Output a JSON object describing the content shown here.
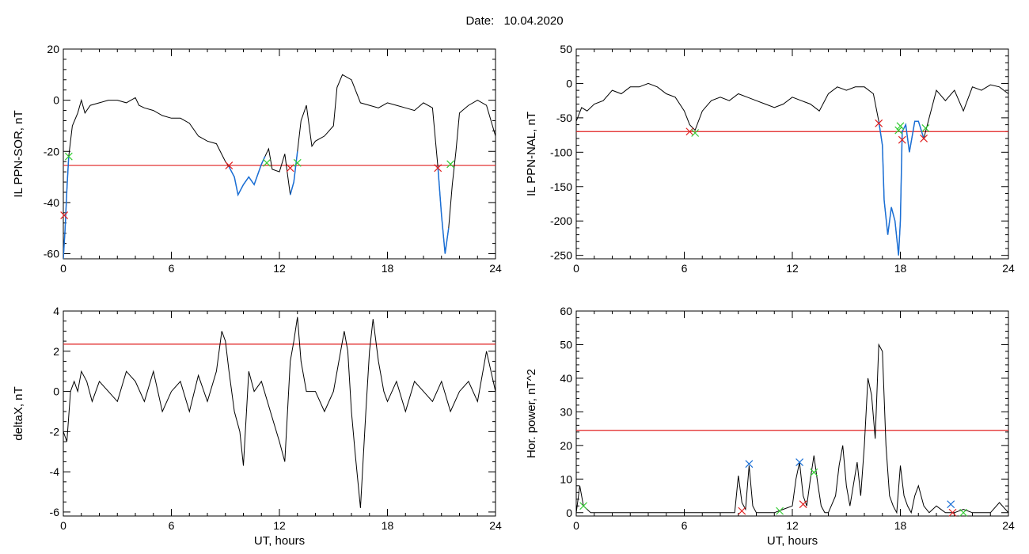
{
  "header": {
    "date_label": "Date:",
    "date_value": "10.04.2020"
  },
  "chart_data": [
    {
      "type": "line",
      "ylabel": "IL PPN-SOR, nT",
      "xlabel": "UT, hours",
      "xlim": [
        0,
        24
      ],
      "ylim": [
        -62,
        20
      ],
      "xticks": [
        0,
        6,
        12,
        18,
        24
      ],
      "yticks": [
        -60,
        -40,
        -20,
        0,
        20
      ],
      "threshold": -25.5,
      "colors": {
        "line": "#000000",
        "highlight": "#1a6fd6",
        "threshold": "#e02020",
        "start_marker": "#e02020",
        "end_marker": "#33cc33"
      },
      "series": [
        {
          "x": [
            0,
            0.1,
            0.2,
            0.3,
            0.5,
            0.8,
            1.0,
            1.2,
            1.5,
            2,
            2.5,
            3,
            3.5,
            4,
            4.2,
            4.5,
            5,
            5.5,
            6,
            6.5,
            7,
            7.5,
            8,
            8.5,
            9,
            9.2,
            9.5,
            9.7,
            10,
            10.3,
            10.6,
            11,
            11.2,
            11.4,
            11.6,
            12,
            12.3,
            12.6,
            12.8,
            13,
            13.2,
            13.5,
            13.8,
            14,
            14.5,
            15,
            15.2,
            15.5,
            16,
            16.5,
            17,
            17.5,
            18,
            18.5,
            19,
            19.5,
            20,
            20.5,
            20.8,
            21,
            21.2,
            21.4,
            21.6,
            21.8,
            22,
            22.5,
            23,
            23.5,
            24
          ],
          "y": [
            -62,
            -50,
            -35,
            -22,
            -10,
            -5,
            0,
            -5,
            -2,
            -1,
            0,
            0,
            -1,
            1,
            -2,
            -3,
            -4,
            -6,
            -7,
            -7,
            -9,
            -14,
            -16,
            -17,
            -24,
            -26,
            -30,
            -37,
            -33,
            -30,
            -33,
            -25,
            -22,
            -19,
            -27,
            -28,
            -21,
            -37,
            -32,
            -20,
            -8,
            -2,
            -18,
            -16,
            -14,
            -10,
            5,
            10,
            8,
            -1,
            -2,
            -3,
            -1,
            -2,
            -3,
            -4,
            -1,
            -3,
            -26,
            -45,
            -60,
            -50,
            -33,
            -20,
            -5,
            -2,
            0,
            -2,
            -14
          ]
        }
      ],
      "segments": [
        [
          0,
          0.3
        ],
        [
          9.2,
          11.3
        ],
        [
          12.6,
          13.0
        ],
        [
          20.8,
          21.5
        ]
      ],
      "markers": [
        {
          "x": 0.05,
          "y": -45,
          "kind": "start"
        },
        {
          "x": 0.3,
          "y": -22,
          "kind": "end"
        },
        {
          "x": 9.2,
          "y": -25.5,
          "kind": "start"
        },
        {
          "x": 11.3,
          "y": -24.5,
          "kind": "end"
        },
        {
          "x": 12.6,
          "y": -26.5,
          "kind": "start"
        },
        {
          "x": 13.0,
          "y": -24.5,
          "kind": "end"
        },
        {
          "x": 20.8,
          "y": -26.5,
          "kind": "start"
        },
        {
          "x": 21.5,
          "y": -25,
          "kind": "end"
        }
      ]
    },
    {
      "type": "line",
      "ylabel": "IL PPN-NAL, nT",
      "xlabel": "UT, hours",
      "xlim": [
        0,
        24
      ],
      "ylim": [
        -255,
        50
      ],
      "xticks": [
        0,
        6,
        12,
        18,
        24
      ],
      "yticks": [
        -250,
        -200,
        -150,
        -100,
        -50,
        0,
        50
      ],
      "threshold": -70,
      "colors": {
        "line": "#000000",
        "highlight": "#1a6fd6",
        "threshold": "#e02020",
        "start_marker": "#e02020",
        "end_marker": "#33cc33"
      },
      "series": [
        {
          "x": [
            0,
            0.3,
            0.6,
            1,
            1.5,
            2,
            2.5,
            3,
            3.5,
            4,
            4.5,
            5,
            5.5,
            6,
            6.3,
            6.6,
            7,
            7.5,
            8,
            8.5,
            9,
            9.5,
            10,
            10.5,
            11,
            11.5,
            12,
            12.5,
            13,
            13.5,
            14,
            14.5,
            15,
            15.5,
            16,
            16.5,
            16.8,
            17,
            17.1,
            17.3,
            17.5,
            17.7,
            17.9,
            18.0,
            18.1,
            18.3,
            18.5,
            18.8,
            19.0,
            19.3,
            19.5,
            20,
            20.5,
            21,
            21.5,
            22,
            22.5,
            23,
            23.5,
            24
          ],
          "y": [
            -55,
            -35,
            -40,
            -30,
            -25,
            -10,
            -15,
            -5,
            -5,
            0,
            -5,
            -15,
            -20,
            -40,
            -60,
            -68,
            -40,
            -25,
            -20,
            -25,
            -15,
            -20,
            -25,
            -30,
            -35,
            -30,
            -20,
            -25,
            -30,
            -40,
            -15,
            -5,
            -10,
            -5,
            -5,
            -15,
            -55,
            -90,
            -170,
            -220,
            -180,
            -200,
            -250,
            -200,
            -70,
            -60,
            -100,
            -55,
            -55,
            -80,
            -60,
            -10,
            -25,
            -10,
            -40,
            -5,
            -10,
            -2,
            -5,
            -15
          ]
        }
      ],
      "segments": [
        [
          16.8,
          19.3
        ]
      ],
      "markers": [
        {
          "x": 6.3,
          "y": -70,
          "kind": "start"
        },
        {
          "x": 6.6,
          "y": -72,
          "kind": "end"
        },
        {
          "x": 16.8,
          "y": -58,
          "kind": "start"
        },
        {
          "x": 17.9,
          "y": -68,
          "kind": "end"
        },
        {
          "x": 18.0,
          "y": -62,
          "kind": "end"
        },
        {
          "x": 18.1,
          "y": -82,
          "kind": "start"
        },
        {
          "x": 19.3,
          "y": -80,
          "kind": "start"
        },
        {
          "x": 19.4,
          "y": -65,
          "kind": "end"
        }
      ]
    },
    {
      "type": "line",
      "ylabel": "deltaX, nT",
      "xlabel": "UT, hours",
      "xlim": [
        0,
        24
      ],
      "ylim": [
        -6.2,
        4
      ],
      "xticks": [
        0,
        6,
        12,
        18,
        24
      ],
      "yticks": [
        -6,
        -4,
        -2,
        0,
        2,
        4
      ],
      "threshold": 2.35,
      "colors": {
        "line": "#000000",
        "threshold": "#e02020"
      },
      "series": [
        {
          "x": [
            0,
            0.2,
            0.4,
            0.6,
            0.8,
            1,
            1.3,
            1.6,
            2,
            2.5,
            3,
            3.5,
            4,
            4.5,
            5,
            5.5,
            6,
            6.5,
            7,
            7.5,
            8,
            8.5,
            8.8,
            9.0,
            9.2,
            9.5,
            9.8,
            10,
            10.3,
            10.6,
            11,
            11.5,
            12,
            12.3,
            12.6,
            12.8,
            13,
            13.2,
            13.5,
            14,
            14.5,
            15,
            15.3,
            15.6,
            15.8,
            16,
            16.2,
            16.5,
            16.8,
            17,
            17.2,
            17.5,
            17.8,
            18,
            18.5,
            19,
            19.5,
            20,
            20.5,
            21,
            21.5,
            22,
            22.5,
            23,
            23.5,
            24
          ],
          "y": [
            -2,
            -2.5,
            0,
            0.5,
            0,
            1,
            0.5,
            -0.5,
            0.5,
            0,
            -0.5,
            1,
            0.5,
            -0.5,
            1,
            -1,
            0,
            0.5,
            -1,
            0.8,
            -0.5,
            1,
            3,
            2.5,
            1,
            -1,
            -2,
            -3.7,
            1,
            0,
            0.5,
            -1,
            -2.5,
            -3.5,
            1.5,
            2.5,
            3.7,
            1.5,
            0,
            0,
            -1,
            0,
            1.5,
            3.0,
            2.0,
            -1,
            -3,
            -5.8,
            -1,
            2.0,
            3.6,
            1.5,
            0,
            -0.5,
            0.5,
            -1,
            0.5,
            0,
            -0.5,
            0.5,
            -1,
            0,
            0.5,
            -0.5,
            2,
            0
          ]
        }
      ]
    },
    {
      "type": "line",
      "ylabel": "Hor. power, nT^2",
      "xlabel": "UT, hours",
      "xlim": [
        0,
        24
      ],
      "ylim": [
        -1,
        60
      ],
      "xticks": [
        0,
        6,
        12,
        18,
        24
      ],
      "yticks": [
        0,
        10,
        20,
        30,
        40,
        50,
        60
      ],
      "threshold": 24.5,
      "colors": {
        "line": "#000000",
        "threshold": "#e02020",
        "red_marker": "#e02020",
        "green_marker": "#33cc33",
        "blue_marker": "#1a6fd6"
      },
      "series": [
        {
          "x": [
            0,
            0.2,
            0.4,
            0.6,
            0.8,
            1,
            2,
            3,
            4,
            5,
            6,
            7,
            8,
            8.5,
            8.8,
            9.0,
            9.2,
            9.4,
            9.6,
            9.8,
            10,
            10.5,
            11,
            11.5,
            12,
            12.2,
            12.4,
            12.6,
            12.8,
            13,
            13.2,
            13.4,
            13.6,
            13.8,
            14,
            14.4,
            14.6,
            14.8,
            15,
            15.2,
            15.6,
            15.8,
            16,
            16.2,
            16.4,
            16.6,
            16.8,
            17,
            17.2,
            17.4,
            17.6,
            17.8,
            18,
            18.2,
            18.4,
            18.6,
            18.8,
            19,
            19.3,
            19.6,
            20,
            20.5,
            21,
            21.5,
            22,
            23,
            23.5,
            24
          ],
          "y": [
            0,
            8,
            2,
            1,
            0,
            0,
            0,
            0,
            0,
            0,
            0,
            0,
            0,
            0,
            0,
            11,
            3,
            1,
            14,
            2,
            0,
            0,
            0,
            1,
            2,
            10,
            15,
            5,
            2,
            10,
            17,
            9,
            2,
            0,
            0,
            5,
            14,
            20,
            8,
            2,
            15,
            5,
            20,
            40,
            35,
            22,
            50,
            48,
            20,
            5,
            2,
            0,
            14,
            5,
            2,
            0,
            5,
            8,
            2,
            0,
            2,
            0,
            0,
            1,
            0,
            0,
            3,
            0
          ]
        }
      ],
      "markers": [
        {
          "x": 0.4,
          "y": 2,
          "color": "green"
        },
        {
          "x": 9.2,
          "y": 0.5,
          "color": "red"
        },
        {
          "x": 9.6,
          "y": 14.5,
          "color": "blue"
        },
        {
          "x": 11.3,
          "y": 0.5,
          "color": "green"
        },
        {
          "x": 12.4,
          "y": 15,
          "color": "blue"
        },
        {
          "x": 12.6,
          "y": 2.5,
          "color": "red"
        },
        {
          "x": 13.2,
          "y": 12,
          "color": "green"
        },
        {
          "x": 20.8,
          "y": 2.5,
          "color": "blue"
        },
        {
          "x": 20.9,
          "y": 0,
          "color": "red"
        },
        {
          "x": 21.5,
          "y": 0,
          "color": "green"
        }
      ]
    }
  ]
}
